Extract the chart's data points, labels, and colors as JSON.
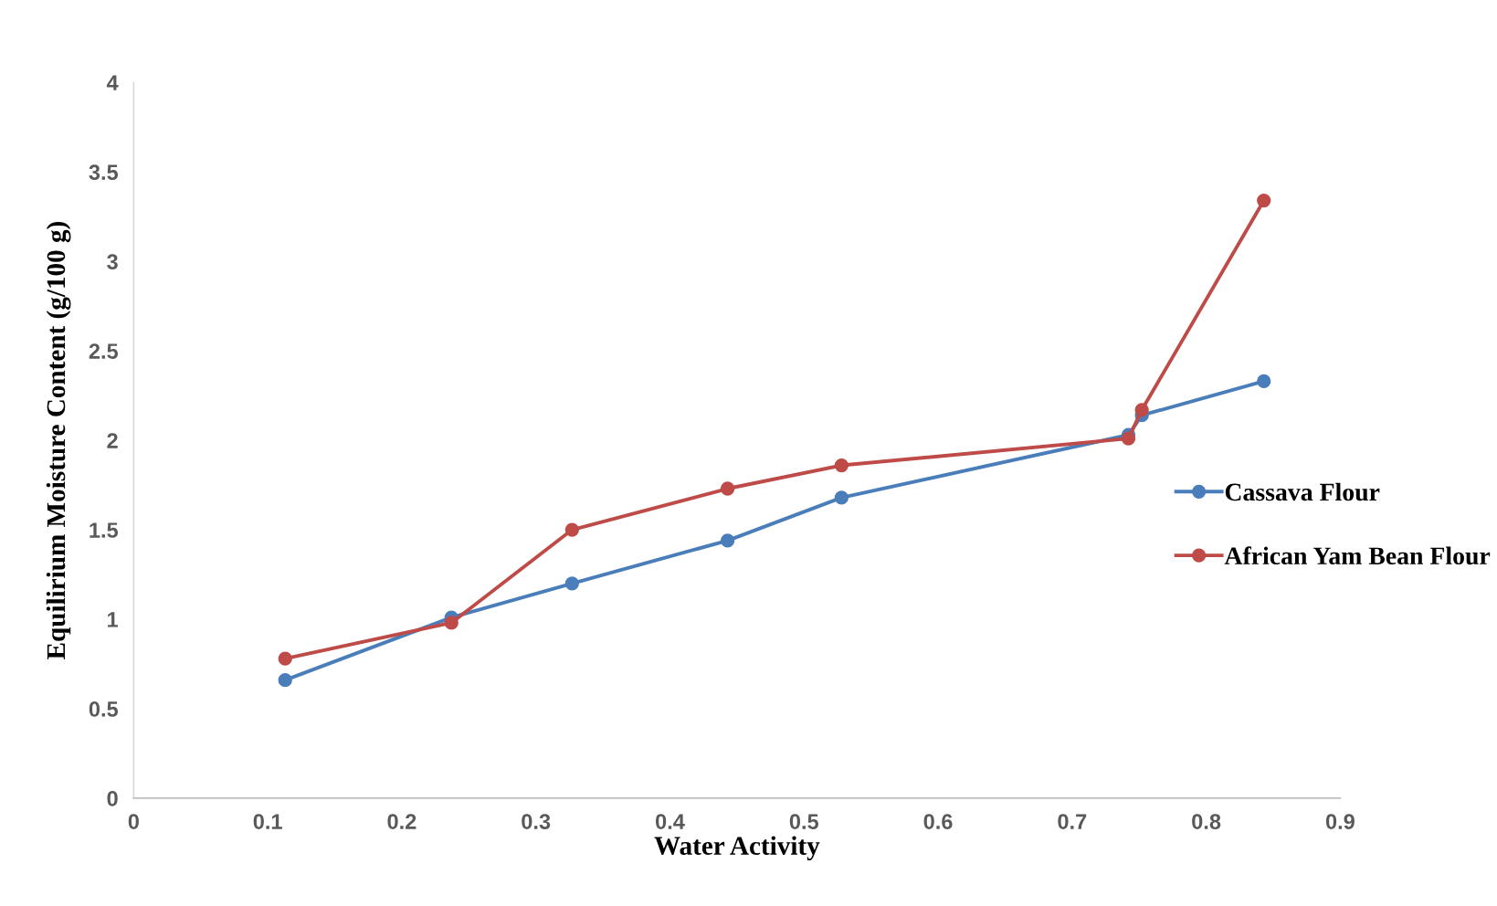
{
  "chart_data": {
    "type": "line",
    "xlabel": "Water Activity",
    "ylabel": "Equilirium Moisture Content (g/100 g)",
    "x": [
      0.113,
      0.237,
      0.327,
      0.443,
      0.528,
      0.742,
      0.752,
      0.843
    ],
    "series": [
      {
        "name": "Cassava Flour",
        "color": "#4a7ebb",
        "values": [
          0.66,
          1.01,
          1.2,
          1.44,
          1.68,
          2.03,
          2.14,
          2.33
        ]
      },
      {
        "name": "African Yam Bean Flour",
        "color": "#be4b48",
        "values": [
          0.78,
          0.98,
          1.5,
          1.73,
          1.86,
          2.01,
          2.17,
          3.34
        ]
      }
    ],
    "xlim": [
      0,
      0.9
    ],
    "xticks": [
      0,
      0.1,
      0.2,
      0.3,
      0.4,
      0.5,
      0.6,
      0.7,
      0.8,
      0.9
    ],
    "ylim": [
      0,
      4
    ],
    "yticks": [
      0,
      0.5,
      1,
      1.5,
      2,
      2.5,
      3,
      3.5,
      4
    ],
    "grid": false,
    "legend": "right",
    "marker": "circle",
    "line_style": "solid"
  }
}
